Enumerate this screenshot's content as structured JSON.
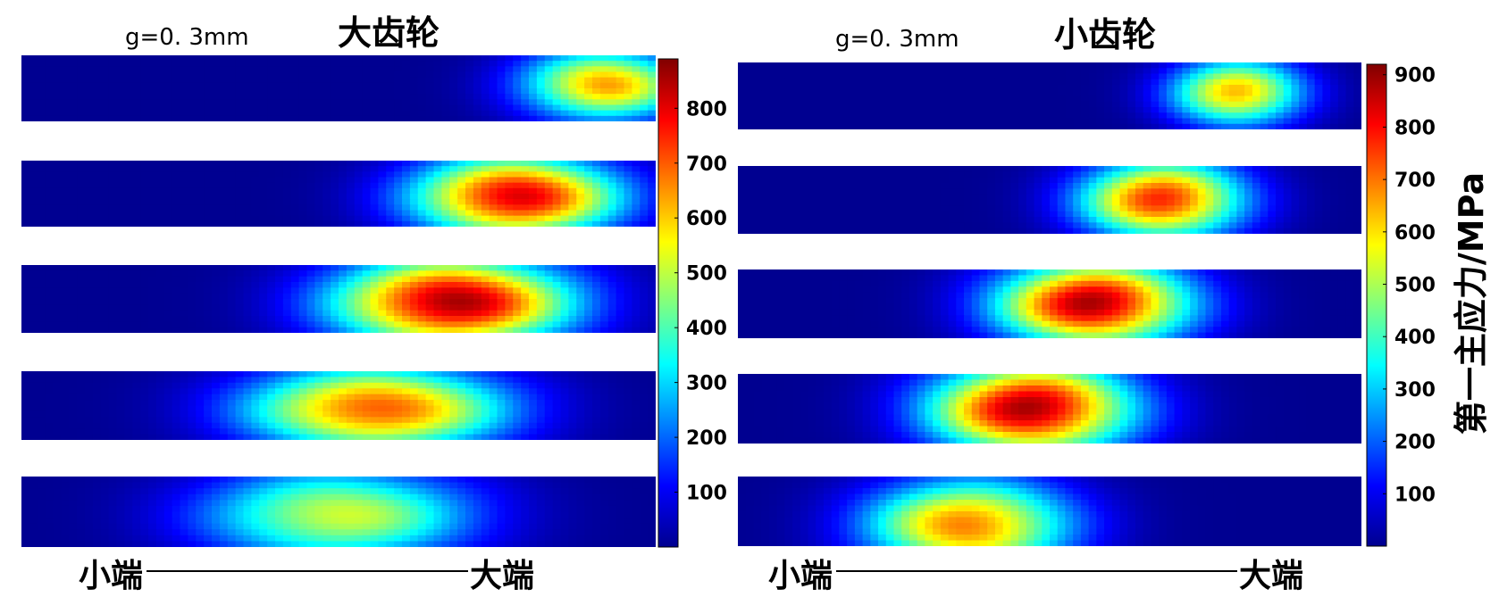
{
  "figure": {
    "panels": [
      {
        "param_label": "g=0. 3mm",
        "title": "大齿轮",
        "axis_start_label": "小端",
        "axis_end_label": "大端"
      },
      {
        "param_label": "g=0. 3mm",
        "title": "小齿轮",
        "axis_start_label": "小端",
        "axis_end_label": "大端"
      }
    ]
  },
  "chart_data": [
    {
      "type": "heatmap",
      "title": "大齿轮",
      "subtitle": "g=0. 3mm",
      "xlabel_start": "小端",
      "xlabel_end": "大端",
      "colormap": "jet",
      "colorbar": {
        "range": [
          0,
          890
        ],
        "ticks": [
          100,
          200,
          300,
          400,
          500,
          600,
          700,
          800
        ],
        "label": ""
      },
      "strips": [
        {
          "row": 1,
          "hotspot_x": 0.92,
          "hotspot_y": 0.45,
          "peak": 640,
          "spread_x": 0.16,
          "spread_y": 0.65
        },
        {
          "row": 2,
          "hotspot_x": 0.78,
          "hotspot_y": 0.55,
          "peak": 830,
          "spread_x": 0.2,
          "spread_y": 0.75
        },
        {
          "row": 3,
          "hotspot_x": 0.68,
          "hotspot_y": 0.55,
          "peak": 880,
          "spread_x": 0.23,
          "spread_y": 0.8
        },
        {
          "row": 4,
          "hotspot_x": 0.56,
          "hotspot_y": 0.55,
          "peak": 720,
          "spread_x": 0.25,
          "spread_y": 0.75
        },
        {
          "row": 5,
          "hotspot_x": 0.5,
          "hotspot_y": 0.55,
          "peak": 520,
          "spread_x": 0.26,
          "spread_y": 0.8
        }
      ]
    },
    {
      "type": "heatmap",
      "title": "小齿轮",
      "subtitle": "g=0. 3mm",
      "xlabel_start": "小端",
      "xlabel_end": "大端",
      "colormap": "jet",
      "colorbar": {
        "range": [
          0,
          920
        ],
        "ticks": [
          100,
          200,
          300,
          400,
          500,
          600,
          700,
          800,
          900
        ],
        "label": "第一主应力/MPa"
      },
      "strips": [
        {
          "row": 1,
          "hotspot_x": 0.8,
          "hotspot_y": 0.45,
          "peak": 650,
          "spread_x": 0.13,
          "spread_y": 0.6
        },
        {
          "row": 2,
          "hotspot_x": 0.68,
          "hotspot_y": 0.5,
          "peak": 790,
          "spread_x": 0.16,
          "spread_y": 0.7
        },
        {
          "row": 3,
          "hotspot_x": 0.57,
          "hotspot_y": 0.5,
          "peak": 900,
          "spread_x": 0.19,
          "spread_y": 0.75
        },
        {
          "row": 4,
          "hotspot_x": 0.47,
          "hotspot_y": 0.5,
          "peak": 900,
          "spread_x": 0.2,
          "spread_y": 0.8
        },
        {
          "row": 5,
          "hotspot_x": 0.37,
          "hotspot_y": 0.7,
          "peak": 700,
          "spread_x": 0.2,
          "spread_y": 0.8
        }
      ]
    }
  ]
}
